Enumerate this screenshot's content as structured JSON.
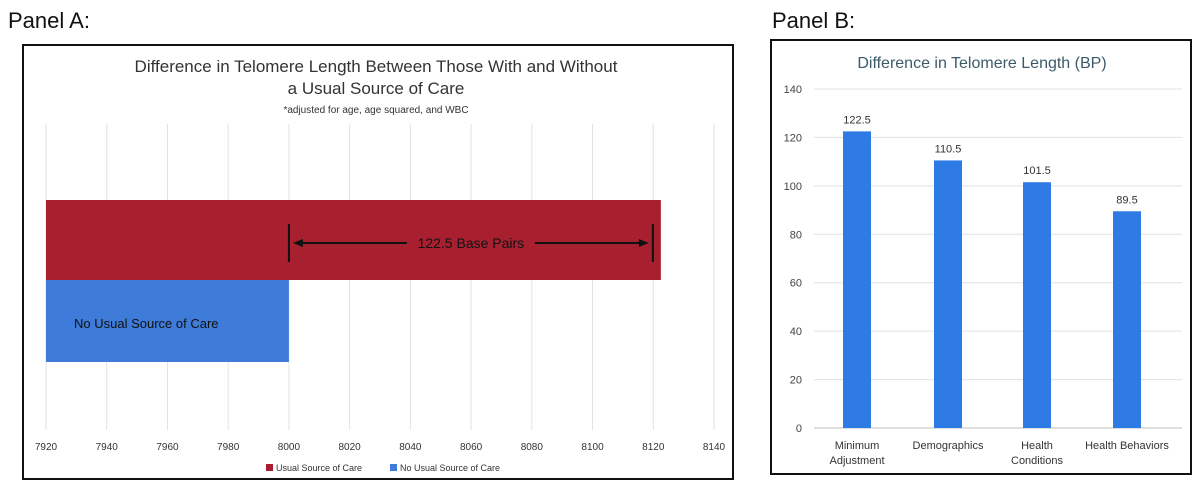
{
  "panels": {
    "a_label": "Panel A:",
    "b_label": "Panel B:"
  },
  "chart_data": [
    {
      "type": "bar",
      "orientation": "horizontal",
      "title": "Difference in Telomere Length Between Those With and Without a Usual Source of Care",
      "title_lines": [
        "Difference in Telomere Length Between Those With and Without",
        "a Usual Source of Care"
      ],
      "subtitle": "*adjusted for age, age squared, and WBC",
      "series": [
        {
          "name": "Usual Source of Care",
          "value": 8122.5,
          "color": "#a8202f"
        },
        {
          "name": "No Usual Source of Care",
          "value": 8000,
          "color": "#3f7bd9"
        }
      ],
      "bar_labels": [
        "",
        "No Usual Source of Care"
      ],
      "annotation": "122.5 Base Pairs",
      "xlim": [
        7920,
        8140
      ],
      "xticks": [
        7920,
        7940,
        7960,
        7980,
        8000,
        8020,
        8040,
        8060,
        8080,
        8100,
        8120,
        8140
      ],
      "legend": "bottom",
      "grid": true
    },
    {
      "type": "bar",
      "title": "Difference in Telomere Length (BP)",
      "categories": [
        [
          "Minimum",
          "Adjustment"
        ],
        [
          "Demographics"
        ],
        [
          "Health",
          "Conditions"
        ],
        [
          "Health Behaviors"
        ]
      ],
      "values": [
        122.5,
        110.5,
        101.5,
        89.5
      ],
      "value_labels": [
        "122.5",
        "110.5",
        "101.5",
        "89.5"
      ],
      "ylim": [
        0,
        140
      ],
      "yticks": [
        0,
        20,
        40,
        60,
        80,
        100,
        120,
        140
      ],
      "color": "#2f7be6",
      "grid": true
    }
  ]
}
